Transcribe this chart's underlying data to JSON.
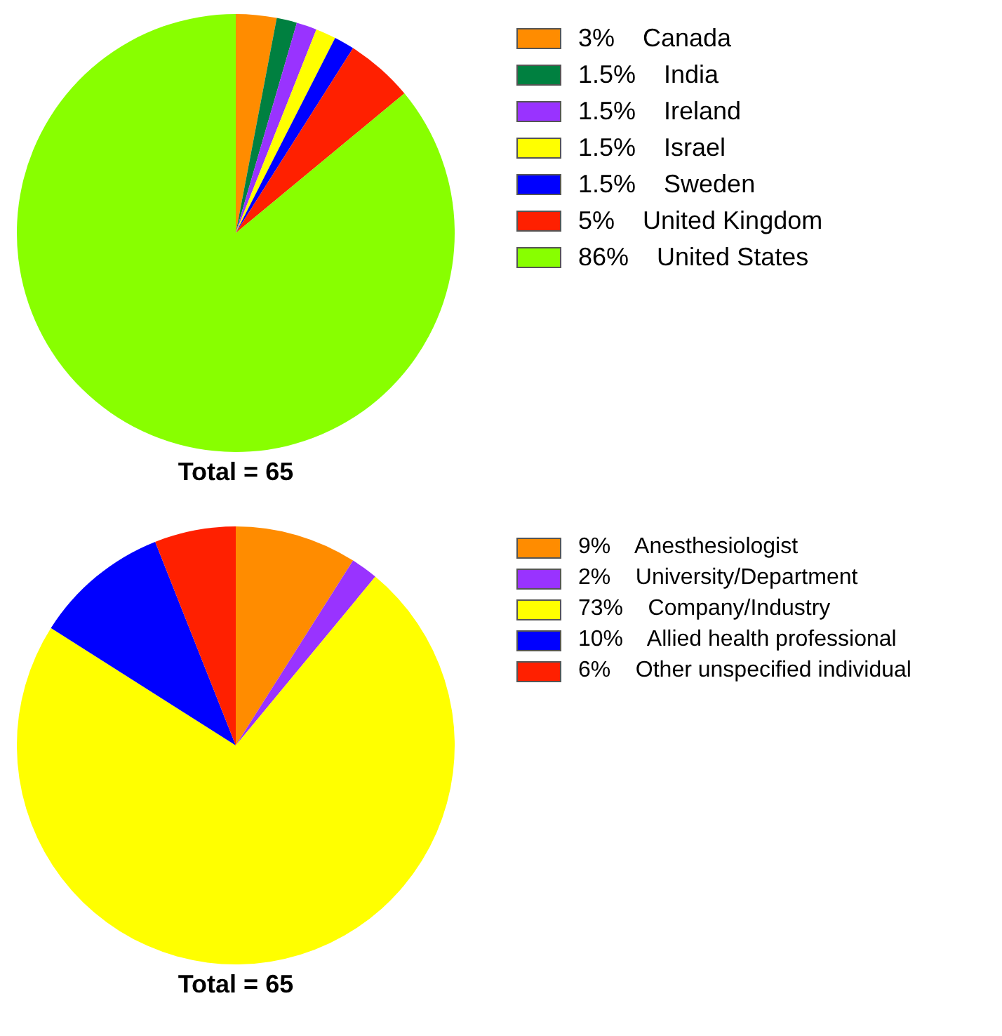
{
  "chart_data": [
    {
      "type": "pie",
      "categories": [
        "Canada",
        "India",
        "Ireland",
        "Israel",
        "Sweden",
        "United Kingdom",
        "United States"
      ],
      "values": [
        3,
        1.5,
        1.5,
        1.5,
        1.5,
        5,
        86
      ],
      "value_labels": [
        "3%",
        "1.5%",
        "1.5%",
        "1.5%",
        "1.5%",
        "5%",
        "86%"
      ],
      "colors": [
        "#ff8c00",
        "#008040",
        "#9933ff",
        "#ffff00",
        "#0000ff",
        "#ff2000",
        "#88ff00"
      ],
      "legend": "top right",
      "annotations": [
        "Total = 65"
      ]
    },
    {
      "type": "pie",
      "categories": [
        "Anesthesiologist",
        "University/Department",
        "Company/Industry",
        "Allied health professional",
        "Other unspecified individual"
      ],
      "values": [
        9,
        2,
        73,
        10,
        6
      ],
      "value_labels": [
        "9%",
        "2%",
        "73%",
        "10%",
        "6%"
      ],
      "colors": [
        "#ff8c00",
        "#9933ff",
        "#ffff00",
        "#0000ff",
        "#ff2000"
      ],
      "legend": "top right",
      "annotations": [
        "Total = 65"
      ]
    }
  ]
}
